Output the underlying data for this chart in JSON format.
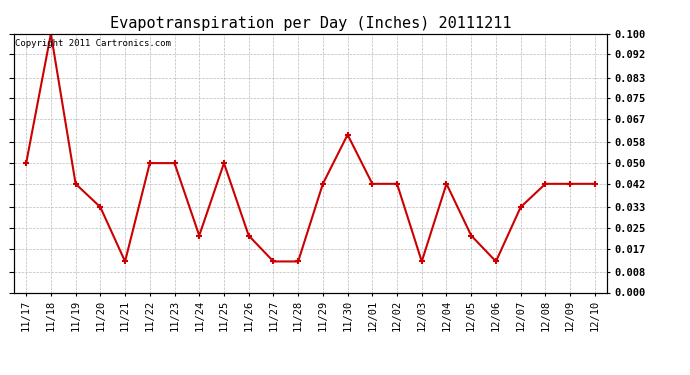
{
  "title": "Evapotranspiration per Day (Inches) 20111211",
  "copyright_text": "Copyright 2011 Cartronics.com",
  "x_labels": [
    "11/17",
    "11/18",
    "11/19",
    "11/20",
    "11/21",
    "11/22",
    "11/23",
    "11/24",
    "11/25",
    "11/26",
    "11/27",
    "11/28",
    "11/29",
    "11/30",
    "12/01",
    "12/02",
    "12/03",
    "12/04",
    "12/05",
    "12/06",
    "12/07",
    "12/08",
    "12/09",
    "12/10"
  ],
  "y_values": [
    0.05,
    0.1,
    0.042,
    0.033,
    0.012,
    0.05,
    0.05,
    0.022,
    0.05,
    0.022,
    0.012,
    0.012,
    0.042,
    0.061,
    0.042,
    0.042,
    0.012,
    0.042,
    0.022,
    0.012,
    0.033,
    0.042,
    0.042,
    0.042
  ],
  "line_color": "#cc0000",
  "marker": "+",
  "marker_size": 5,
  "marker_linewidth": 1.5,
  "background_color": "#ffffff",
  "grid_color": "#bbbbbb",
  "ylim": [
    0.0,
    0.1
  ],
  "yticks": [
    0.0,
    0.008,
    0.017,
    0.025,
    0.033,
    0.042,
    0.05,
    0.058,
    0.067,
    0.075,
    0.083,
    0.092,
    0.1
  ],
  "title_fontsize": 11,
  "tick_fontsize": 7.5,
  "copyright_fontsize": 6.5
}
